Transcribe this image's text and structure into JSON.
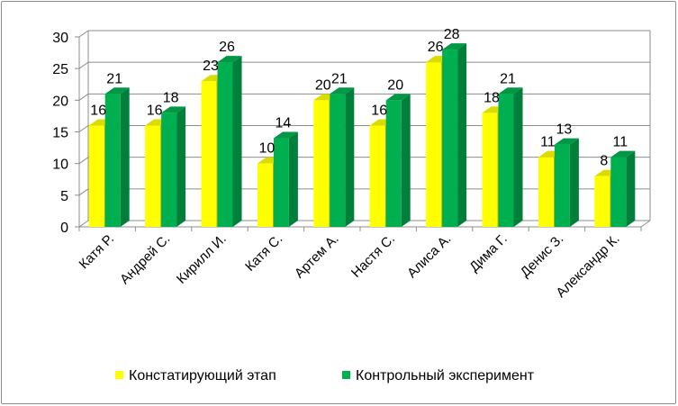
{
  "chart_data": {
    "type": "bar",
    "categories": [
      "Катя Р.",
      "Андрей С.",
      "Кирилл И.",
      "Катя С.",
      "Артем А.",
      "Настя С.",
      "Алиса А.",
      "Дима Г.",
      "Денис З.",
      "Александр К."
    ],
    "series": [
      {
        "name": "Констатирующий этап",
        "values": [
          16,
          16,
          23,
          10,
          20,
          16,
          26,
          18,
          11,
          8
        ],
        "color": "#ffff00"
      },
      {
        "name": "Контрольный эксперимент",
        "values": [
          21,
          18,
          26,
          14,
          21,
          20,
          28,
          21,
          13,
          11
        ],
        "color": "#00b050"
      }
    ],
    "title": "",
    "xlabel": "",
    "ylabel": "",
    "ylim": [
      0,
      30
    ],
    "yticks": [
      0,
      5,
      10,
      15,
      20,
      25,
      30
    ],
    "grid": true,
    "legend_position": "bottom",
    "style": "3d-clustered-column"
  }
}
